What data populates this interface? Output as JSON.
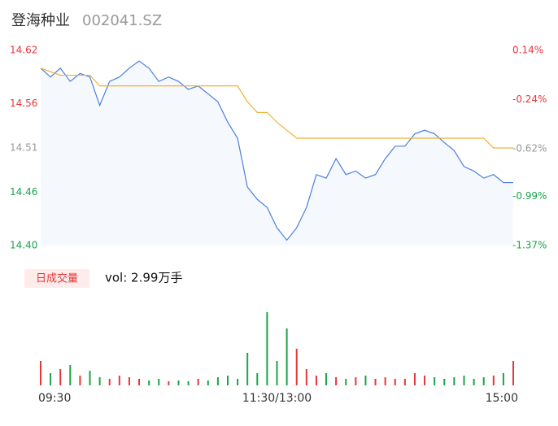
{
  "chart_data": {
    "type": "intraday",
    "title": "登海种业",
    "subtitle": "002041.SZ",
    "categories": [
      "09:30",
      null,
      null,
      null,
      null,
      null,
      null,
      null,
      null,
      null,
      null,
      null,
      null,
      null,
      null,
      null,
      null,
      null,
      null,
      null,
      null,
      null,
      null,
      null,
      "11:30/13:00",
      null,
      null,
      null,
      null,
      null,
      null,
      null,
      null,
      null,
      null,
      null,
      null,
      null,
      null,
      null,
      null,
      null,
      null,
      null,
      null,
      null,
      null,
      null,
      "15:00"
    ],
    "series": [
      {
        "color": "#4a7fe0",
        "values": [
          14.6,
          14.59,
          14.6,
          14.585,
          14.594,
          14.59,
          14.558,
          14.585,
          14.59,
          14.6,
          14.608,
          14.6,
          14.585,
          14.59,
          14.585,
          14.576,
          14.58,
          14.571,
          14.562,
          14.539,
          14.521,
          14.466,
          14.452,
          14.443,
          14.42,
          14.406,
          14.42,
          14.443,
          14.48,
          14.476,
          14.498,
          14.48,
          14.484,
          14.476,
          14.48,
          14.498,
          14.512,
          14.512,
          14.526,
          14.53,
          14.526,
          14.516,
          14.507,
          14.489,
          14.484,
          14.476,
          14.48,
          14.471,
          14.471
        ]
      },
      {
        "color": "#f0b030",
        "values": [
          14.6,
          14.596,
          14.592,
          14.592,
          14.592,
          14.592,
          14.58,
          14.58,
          14.58,
          14.58,
          14.58,
          14.58,
          14.58,
          14.58,
          14.58,
          14.58,
          14.58,
          14.58,
          14.58,
          14.58,
          14.58,
          14.562,
          14.55,
          14.55,
          14.539,
          14.53,
          14.521,
          14.521,
          14.521,
          14.521,
          14.521,
          14.521,
          14.521,
          14.521,
          14.521,
          14.521,
          14.521,
          14.521,
          14.521,
          14.521,
          14.521,
          14.521,
          14.521,
          14.521,
          14.521,
          14.521,
          14.51,
          14.51,
          14.51
        ]
      }
    ],
    "ylim": [
      14.4,
      14.62
    ],
    "yticks": [
      14.62,
      14.56,
      14.51,
      14.46,
      {
        "value": 14.4,
        "label": "14.40"
      }
    ],
    "y2lim": [
      -1.37,
      0.14
    ],
    "y2ticks": [
      {
        "value": 0.14,
        "label": "0.14%"
      },
      {
        "value": -0.24,
        "label": "-0.24%"
      },
      {
        "value": -0.62,
        "label": "-0.62%"
      },
      {
        "value": -0.99,
        "label": "-0.99%"
      },
      {
        "value": -1.37,
        "label": "-1.37%"
      }
    ],
    "up_color": "#e8353a",
    "flat_color": "#999999",
    "down_color": "#1aa34a",
    "volume": {
      "label": "日成交量",
      "text": "vol: 2.99万手",
      "ylim": [
        0,
        110
      ],
      "values": [
        30,
        15,
        20,
        25,
        12,
        18,
        10,
        8,
        12,
        10,
        8,
        6,
        8,
        5,
        6,
        5,
        8,
        6,
        10,
        12,
        8,
        40,
        15,
        90,
        30,
        70,
        45,
        20,
        12,
        15,
        10,
        8,
        10,
        12,
        8,
        10,
        8,
        8,
        15,
        12,
        10,
        8,
        10,
        12,
        8,
        10,
        12,
        15,
        30
      ]
    }
  }
}
